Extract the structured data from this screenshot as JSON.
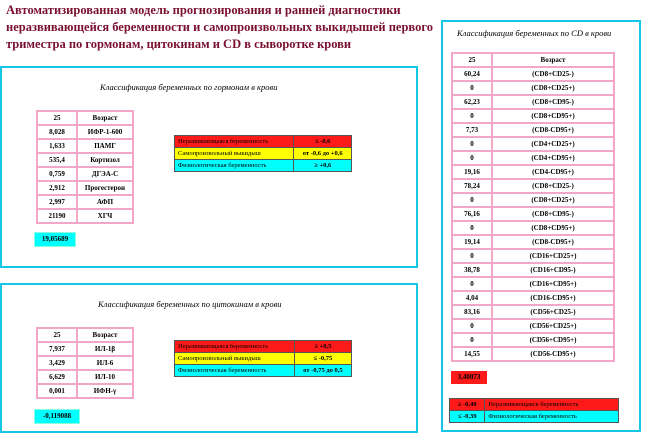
{
  "title": "Автоматизированная модель прогнозирования и ранней диагностики неразвивающейся беременности и самопроизвольных выкидышей первого триместра по гормонам, цитокинам и CD в сыворотке крови",
  "hormones": {
    "title": "Классификация беременных по гормонам в крови",
    "header": [
      "25",
      "Возраст"
    ],
    "rows": [
      [
        "8,028",
        "ИФР-1-600"
      ],
      [
        "1,633",
        "ПАМГ"
      ],
      [
        "535,4",
        "Кортизол"
      ],
      [
        "0,759",
        "ДГЭА-С"
      ],
      [
        "2,912",
        "Прогестерон"
      ],
      [
        "2,997",
        "АФП"
      ],
      [
        "21190",
        "ХГЧ"
      ]
    ],
    "classification": [
      {
        "label": "Неразвивающаяся беременность",
        "value": "≤ -0,6"
      },
      {
        "label": "Самопроизвольный выкидыш",
        "value": "от -0,6 до +0,6"
      },
      {
        "label": "Физиологическая беременность",
        "value": "≥ +0,6"
      }
    ],
    "result": "19,05689"
  },
  "cytokines": {
    "title": "Классификация беременных по цитокинам в крови",
    "header": [
      "25",
      "Возраст"
    ],
    "rows": [
      [
        "7,937",
        "ИЛ-1β"
      ],
      [
        "3,429",
        "ИЛ-6"
      ],
      [
        "6,629",
        "ИЛ-10"
      ],
      [
        "0,001",
        "ИФН-γ"
      ]
    ],
    "classification": [
      {
        "label": "Неразвивающаяся беременность",
        "value": "≥ +0,5"
      },
      {
        "label": "Самопроизвольный выкидыш",
        "value": "≤ -0,75"
      },
      {
        "label": "Физиологическая беременность",
        "value": "от -0,75 до 0,5"
      }
    ],
    "result": "-0,119088"
  },
  "cd": {
    "title": "Классификация беременных по CD в крови",
    "header": [
      "25",
      "Возраст"
    ],
    "rows": [
      [
        "60,24",
        "(CD8+CD25-)"
      ],
      [
        "0",
        "(CD8+CD25+)"
      ],
      [
        "62,23",
        "(CD8+CD95-)"
      ],
      [
        "0",
        "(CD8+CD95+)"
      ],
      [
        "7,73",
        "(CD8-CD95+)"
      ],
      [
        "0",
        "(CD4+CD25+)"
      ],
      [
        "0",
        "(CD4+CD95+)"
      ],
      [
        "19,16",
        "(CD4-CD95+)"
      ],
      [
        "78,24",
        "(CD8+CD25-)"
      ],
      [
        "0",
        "(CD8+CD25+)"
      ],
      [
        "76,16",
        "(CD8+CD95-)"
      ],
      [
        "0",
        "(CD8+CD95+)"
      ],
      [
        "19,14",
        "(CD8-CD95+)"
      ],
      [
        "0",
        "(CD16+CD25+)"
      ],
      [
        "38,78",
        "(CD16+CD95-)"
      ],
      [
        "0",
        "(CD16+CD95+)"
      ],
      [
        "4,04",
        "(CD16-CD95+)"
      ],
      [
        "83,16",
        "(CD56+CD25-)"
      ],
      [
        "0",
        "(CD56+CD25+)"
      ],
      [
        "0",
        "(CD56+CD95+)"
      ],
      [
        "14,55",
        "(CD56-CD95+)"
      ]
    ],
    "result": "3,40073",
    "classification": [
      {
        "label": "Неразвивающаяся беременность",
        "value": "≥ -0,40"
      },
      {
        "label": "Физиологическая беременность",
        "value": "≤ -0,39"
      }
    ]
  },
  "colors": {
    "panel_border": "#16c6e6",
    "table_border": "#f2a7c8",
    "title_color": "#7a1030",
    "red": "#ff1a1a",
    "yellow": "#ffff00",
    "cyan": "#00ffff"
  }
}
